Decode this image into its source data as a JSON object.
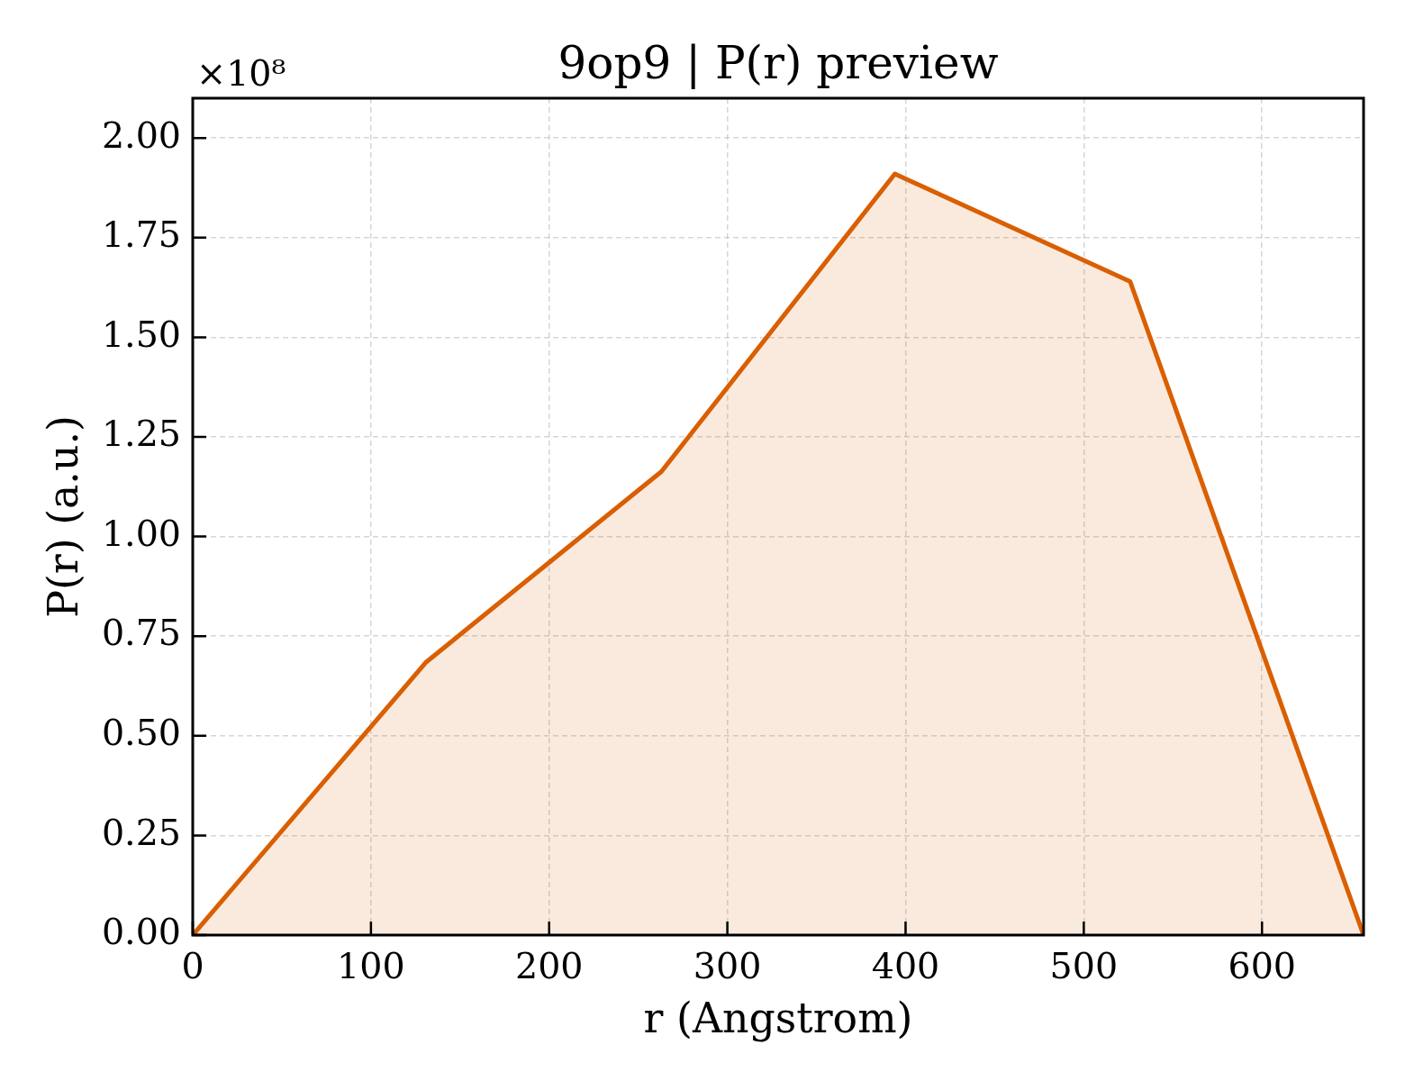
{
  "chart_data": {
    "type": "area",
    "title": "9op9 | P(r) preview",
    "xlabel": "r (Angstrom)",
    "ylabel": "P(r) (a.u.)",
    "annotations": [
      "×10⁸"
    ],
    "x": [
      0,
      131,
      263,
      394,
      526,
      657
    ],
    "series": [
      {
        "color": "#d95f02",
        "values": [
          0,
          0.685,
          1.163,
          1.91,
          1.64,
          0
        ]
      }
    ],
    "xlim": [
      0,
      657
    ],
    "ylim": [
      0,
      2.1
    ],
    "xticks": [
      0,
      100,
      200,
      300,
      400,
      500,
      600
    ],
    "yticks": [
      {
        "value": 0,
        "label": "0.00"
      },
      {
        "value": 0.25,
        "label": "0.25"
      },
      {
        "value": 0.5,
        "label": "0.50"
      },
      {
        "value": 0.75,
        "label": "0.75"
      },
      {
        "value": 1,
        "label": "1.00"
      },
      {
        "value": 1.25,
        "label": "1.25"
      },
      {
        "value": 1.5,
        "label": "1.50"
      },
      {
        "value": 1.75,
        "label": "1.75"
      },
      {
        "value": 2,
        "label": "2.00"
      }
    ],
    "grid": true
  }
}
